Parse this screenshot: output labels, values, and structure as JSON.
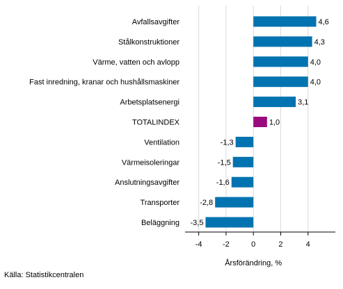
{
  "chart_data": {
    "type": "bar",
    "orientation": "horizontal",
    "categories": [
      "Avfallsavgifter",
      "Stålkonstruktioner",
      "Värme, vatten och avlopp",
      "Fast inredning, kranar och hushållsmaskiner",
      "Arbetsplatsenergi",
      "TOTALINDEX",
      "Ventilation",
      "Värmeisoleringar",
      "Anslutningsavgifter",
      "Transporter",
      "Beläggning"
    ],
    "values": [
      4.6,
      4.3,
      4.0,
      4.0,
      3.1,
      1.0,
      -1.3,
      -1.5,
      -1.6,
      -2.8,
      -3.5
    ],
    "value_labels": [
      "4,6",
      "4,3",
      "4,0",
      "4,0",
      "3,1",
      "1,0",
      "-1,3",
      "-1,5",
      "-1,6",
      "-2,8",
      "-3,5"
    ],
    "highlight_category": "TOTALINDEX",
    "xlabel": "Årsförändring, %",
    "xlim": [
      -5,
      6
    ],
    "xticks": [
      -4,
      -2,
      0,
      2,
      4
    ],
    "xtick_labels": [
      "-4",
      "-2",
      "0",
      "2",
      "4"
    ],
    "grid": "vertical gridlines",
    "colors": {
      "bar": "#0073b0",
      "highlight": "#9b0a7d",
      "grid": "#d9d9d9",
      "axis": "#000000"
    }
  },
  "source_text": "Källa: Statistikcentralen"
}
